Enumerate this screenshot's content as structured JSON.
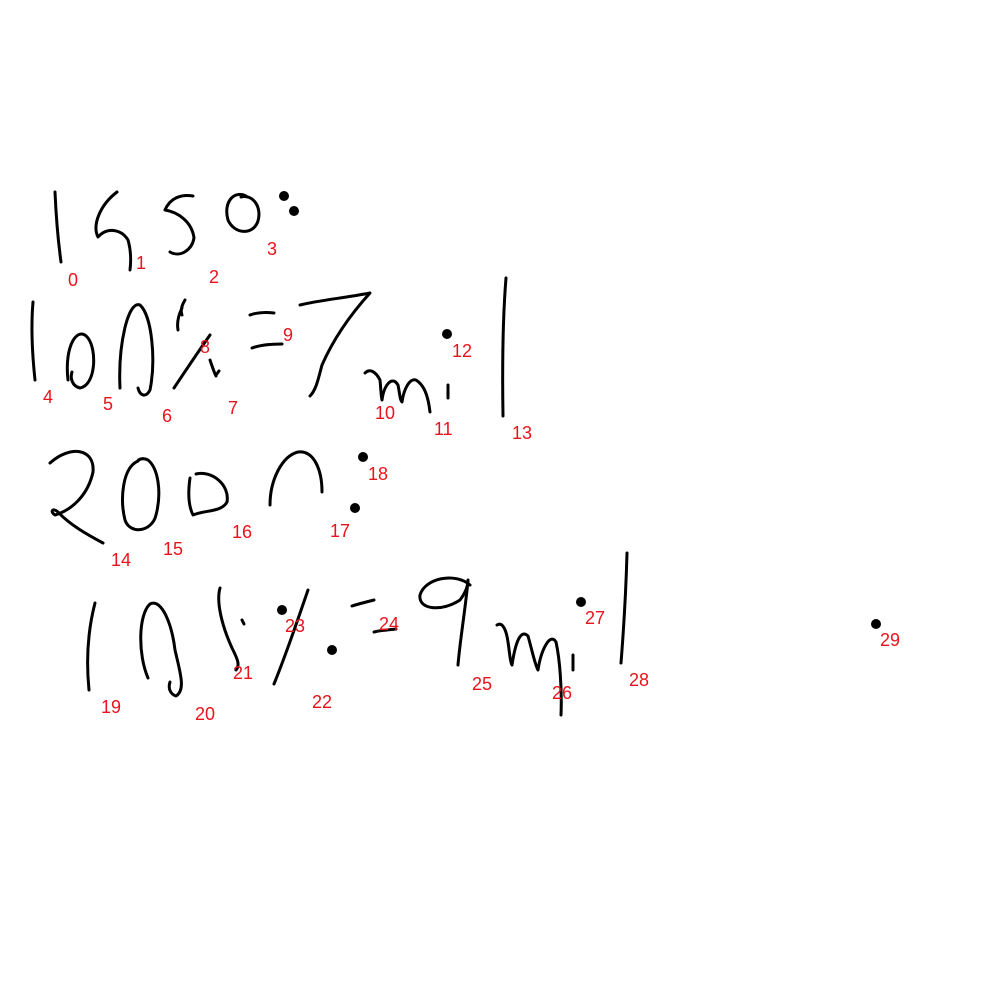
{
  "colors": {
    "ink": "#000000",
    "label": "#e8141c",
    "background": "#ffffff"
  },
  "labels": [
    "0",
    "1",
    "2",
    "3",
    "4",
    "5",
    "6",
    "7",
    "8",
    "9",
    "10",
    "11",
    "12",
    "13",
    "14",
    "15",
    "16",
    "17",
    "18",
    "19",
    "20",
    "21",
    "22",
    "23",
    "24",
    "25",
    "26",
    "27",
    "28",
    "29"
  ]
}
